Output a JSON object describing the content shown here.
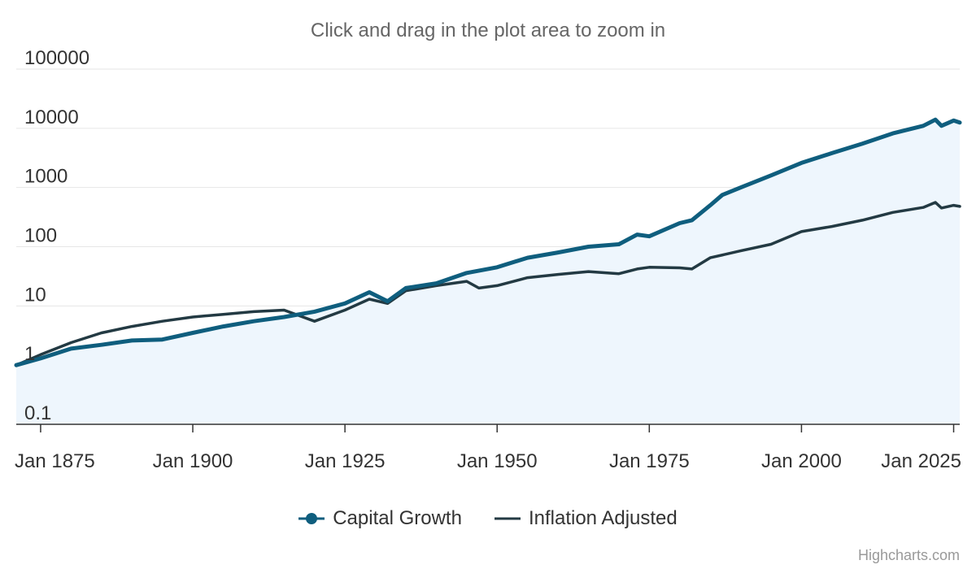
{
  "subtitle": "Click and drag in the plot area to zoom in",
  "credits": "Highcharts.com",
  "colors": {
    "capital_growth": "#0f5e7e",
    "inflation_adjusted": "#233a43",
    "area_fill": "#eef6fd",
    "grid": "#e6e6e6",
    "axis": "#333333"
  },
  "chart_data": {
    "type": "area",
    "y_scale": "log",
    "ylim": [
      0.1,
      100000
    ],
    "xlim": [
      "Jan 1871",
      "Jan 2026"
    ],
    "y_ticks": [
      "100000",
      "10000",
      "1000",
      "100",
      "10",
      "1",
      "0.1"
    ],
    "x_ticks": [
      "Jan 1875",
      "Jan 1900",
      "Jan 1925",
      "Jan 1950",
      "Jan 1975",
      "Jan 2000",
      "Jan 2025"
    ],
    "legend_position": "bottom-center",
    "grid": true,
    "series": [
      {
        "name": "Capital Growth",
        "marker": "circle",
        "points": [
          [
            "Jan 1871",
            1.0
          ],
          [
            "Jan 1875",
            1.3
          ],
          [
            "Jan 1880",
            1.9
          ],
          [
            "Jan 1885",
            2.2
          ],
          [
            "Jan 1890",
            2.6
          ],
          [
            "Jan 1895",
            2.7
          ],
          [
            "Jan 1900",
            3.5
          ],
          [
            "Jan 1905",
            4.5
          ],
          [
            "Jan 1910",
            5.5
          ],
          [
            "Jan 1915",
            6.5
          ],
          [
            "Jan 1920",
            8.0
          ],
          [
            "Jan 1925",
            11
          ],
          [
            "Jan 1929",
            17
          ],
          [
            "Jan 1932",
            12
          ],
          [
            "Jan 1935",
            20
          ],
          [
            "Jan 1940",
            24
          ],
          [
            "Jan 1945",
            36
          ],
          [
            "Jan 1950",
            45
          ],
          [
            "Jan 1955",
            65
          ],
          [
            "Jan 1960",
            80
          ],
          [
            "Jan 1965",
            100
          ],
          [
            "Jan 1970",
            110
          ],
          [
            "Jan 1973",
            160
          ],
          [
            "Jan 1975",
            150
          ],
          [
            "Jan 1980",
            250
          ],
          [
            "Jan 1982",
            280
          ],
          [
            "Jan 1985",
            500
          ],
          [
            "Jan 1987",
            750
          ],
          [
            "Jan 1990",
            1000
          ],
          [
            "Jan 1995",
            1600
          ],
          [
            "Jan 2000",
            2600
          ],
          [
            "Jan 2005",
            3800
          ],
          [
            "Jan 2010",
            5500
          ],
          [
            "Jan 2015",
            8200
          ],
          [
            "Jan 2020",
            11000
          ],
          [
            "Jan 2022",
            14000
          ],
          [
            "Jan 2023",
            11000
          ],
          [
            "Jan 2025",
            13500
          ],
          [
            "Jan 2026",
            12500
          ]
        ]
      },
      {
        "name": "Inflation Adjusted",
        "marker": "none",
        "points": [
          [
            "Jan 1871",
            1.0
          ],
          [
            "Jan 1875",
            1.5
          ],
          [
            "Jan 1880",
            2.4
          ],
          [
            "Jan 1885",
            3.5
          ],
          [
            "Jan 1890",
            4.5
          ],
          [
            "Jan 1895",
            5.5
          ],
          [
            "Jan 1900",
            6.5
          ],
          [
            "Jan 1905",
            7.2
          ],
          [
            "Jan 1910",
            8.0
          ],
          [
            "Jan 1915",
            8.5
          ],
          [
            "Jan 1920",
            5.5
          ],
          [
            "Jan 1925",
            8.5
          ],
          [
            "Jan 1929",
            13
          ],
          [
            "Jan 1932",
            11
          ],
          [
            "Jan 1935",
            18
          ],
          [
            "Jan 1940",
            22
          ],
          [
            "Jan 1945",
            26
          ],
          [
            "Jan 1947",
            20
          ],
          [
            "Jan 1950",
            22
          ],
          [
            "Jan 1955",
            30
          ],
          [
            "Jan 1960",
            34
          ],
          [
            "Jan 1965",
            38
          ],
          [
            "Jan 1970",
            35
          ],
          [
            "Jan 1973",
            42
          ],
          [
            "Jan 1975",
            45
          ],
          [
            "Jan 1980",
            44
          ],
          [
            "Jan 1982",
            42
          ],
          [
            "Jan 1985",
            65
          ],
          [
            "Jan 1990",
            85
          ],
          [
            "Jan 1995",
            110
          ],
          [
            "Jan 2000",
            180
          ],
          [
            "Jan 2005",
            220
          ],
          [
            "Jan 2010",
            280
          ],
          [
            "Jan 2015",
            380
          ],
          [
            "Jan 2020",
            460
          ],
          [
            "Jan 2022",
            560
          ],
          [
            "Jan 2023",
            450
          ],
          [
            "Jan 2025",
            500
          ],
          [
            "Jan 2026",
            480
          ]
        ]
      }
    ]
  }
}
